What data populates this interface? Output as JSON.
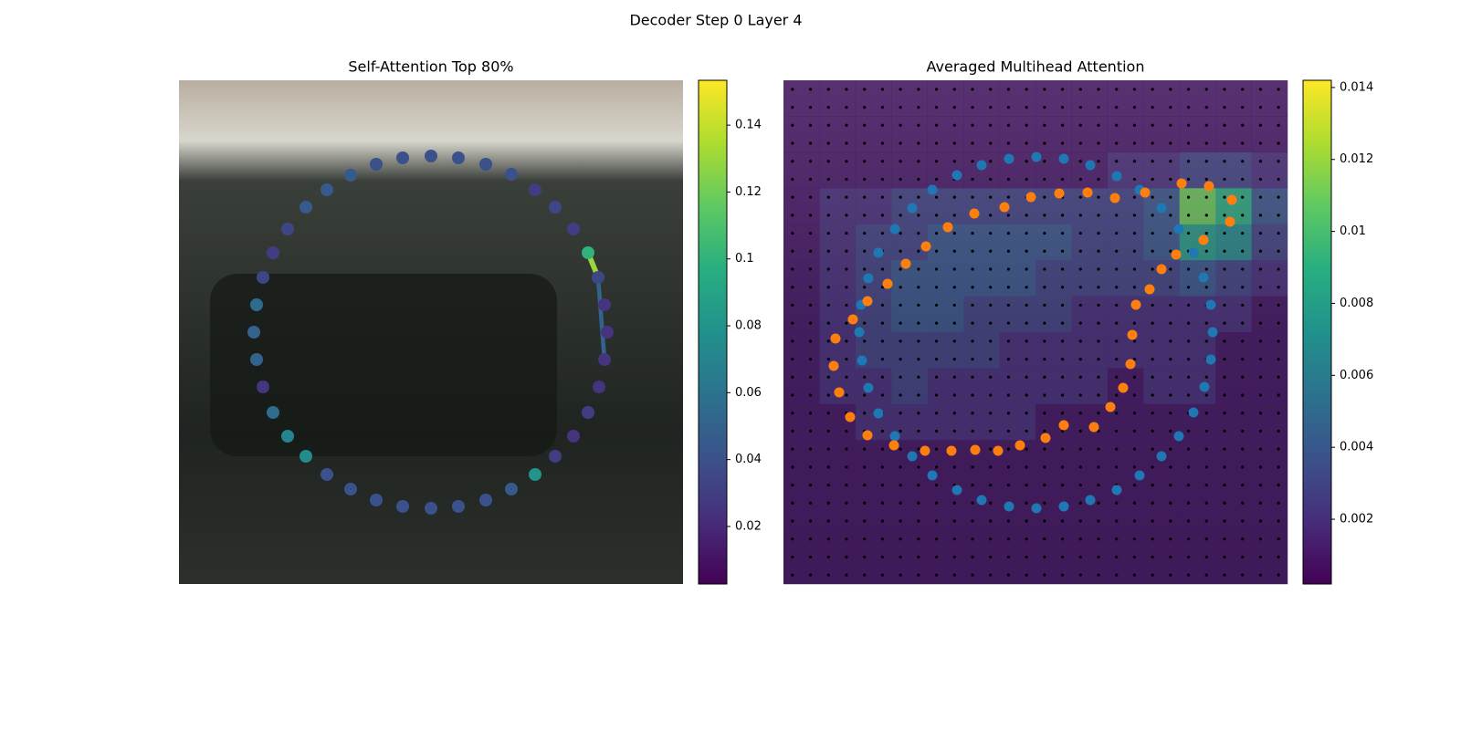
{
  "title": "Decoder Step 0 Layer 4",
  "chart_data": [
    {
      "type": "scatter",
      "title": "Self-Attention Top 80%",
      "colormap": "viridis",
      "xlim": [
        0,
        552
      ],
      "ylim": [
        552,
        0
      ],
      "x": [
        188,
        216,
        245,
        276,
        306,
        336,
        364,
        390,
        412,
        432,
        448,
        459,
        466,
        469,
        466,
        460,
        448,
        432,
        412,
        390,
        364,
        336,
        306,
        276,
        245,
        216,
        188,
        162,
        139,
        119,
        103,
        92,
        85,
        82,
        85,
        92,
        103,
        119,
        139,
        162
      ],
      "y": [
        104,
        92,
        85,
        83,
        85,
        92,
        103,
        120,
        139,
        163,
        189,
        216,
        246,
        276,
        306,
        336,
        364,
        390,
        412,
        432,
        448,
        460,
        467,
        469,
        467,
        460,
        448,
        432,
        412,
        390,
        364,
        336,
        306,
        276,
        246,
        216,
        189,
        163,
        139,
        120
      ],
      "values": [
        0.045,
        0.04,
        0.04,
        0.04,
        0.04,
        0.04,
        0.04,
        0.03,
        0.035,
        0.03,
        0.1,
        0.035,
        0.025,
        0.025,
        0.025,
        0.025,
        0.03,
        0.025,
        0.03,
        0.08,
        0.045,
        0.04,
        0.04,
        0.04,
        0.04,
        0.04,
        0.04,
        0.04,
        0.075,
        0.07,
        0.055,
        0.025,
        0.05,
        0.05,
        0.055,
        0.035,
        0.03,
        0.035,
        0.045,
        0.045
      ],
      "edges": [
        {
          "from": 11,
          "to": 14,
          "value": 0.05
        },
        {
          "from": 10,
          "to": 11,
          "value": 0.13
        }
      ],
      "colorbar": {
        "lim": [
          0.0028,
          0.1534
        ],
        "ticks": [
          0.02,
          0.04,
          0.06,
          0.08,
          0.1,
          0.12,
          0.14
        ]
      }
    },
    {
      "type": "heatmap",
      "title": "Averaged Multihead Attention",
      "colormap": "viridis",
      "xlim": [
        0,
        552
      ],
      "ylim": [
        552,
        0
      ],
      "grid_dots": true,
      "matrix": [
        [
          0.001,
          0.001,
          0.001,
          0.001,
          0.001,
          0.001,
          0.001,
          0.001,
          0.001,
          0.001,
          0.001,
          0.001,
          0.001,
          0.001
        ],
        [
          0.001,
          0.001,
          0.001,
          0.001,
          0.001,
          0.001,
          0.001,
          0.001,
          0.001,
          0.001,
          0.001,
          0.001,
          0.001,
          0.001
        ],
        [
          0.001,
          0.001,
          0.001,
          0.001,
          0.001,
          0.001,
          0.001,
          0.001,
          0.001,
          0.002,
          0.002,
          0.003,
          0.003,
          0.002
        ],
        [
          0.001,
          0.002,
          0.002,
          0.003,
          0.003,
          0.003,
          0.003,
          0.003,
          0.003,
          0.003,
          0.004,
          0.011,
          0.009,
          0.004
        ],
        [
          0.001,
          0.002,
          0.003,
          0.003,
          0.004,
          0.004,
          0.004,
          0.004,
          0.003,
          0.003,
          0.004,
          0.008,
          0.007,
          0.003
        ],
        [
          0.001,
          0.002,
          0.003,
          0.004,
          0.004,
          0.004,
          0.004,
          0.003,
          0.003,
          0.003,
          0.003,
          0.004,
          0.003,
          0.002
        ],
        [
          0.001,
          0.002,
          0.003,
          0.004,
          0.004,
          0.003,
          0.003,
          0.003,
          0.002,
          0.002,
          0.002,
          0.002,
          0.002,
          0.001
        ],
        [
          0.001,
          0.002,
          0.003,
          0.003,
          0.003,
          0.003,
          0.002,
          0.002,
          0.002,
          0.002,
          0.002,
          0.002,
          0.001,
          0.001
        ],
        [
          0.001,
          0.002,
          0.002,
          0.003,
          0.002,
          0.002,
          0.002,
          0.002,
          0.002,
          0.001,
          0.002,
          0.002,
          0.001,
          0.001
        ],
        [
          0.001,
          0.001,
          0.002,
          0.002,
          0.002,
          0.002,
          0.002,
          0.001,
          0.001,
          0.001,
          0.001,
          0.001,
          0.001,
          0.001
        ],
        [
          0.001,
          0.001,
          0.001,
          0.001,
          0.001,
          0.001,
          0.001,
          0.001,
          0.001,
          0.001,
          0.001,
          0.001,
          0.001,
          0.001
        ],
        [
          0.001,
          0.001,
          0.001,
          0.001,
          0.001,
          0.001,
          0.001,
          0.001,
          0.001,
          0.001,
          0.001,
          0.001,
          0.001,
          0.001
        ],
        [
          0.001,
          0.001,
          0.001,
          0.001,
          0.001,
          0.001,
          0.001,
          0.001,
          0.001,
          0.001,
          0.001,
          0.001,
          0.001,
          0.001
        ],
        [
          0.001,
          0.001,
          0.001,
          0.001,
          0.001,
          0.001,
          0.001,
          0.001,
          0.001,
          0.001,
          0.001,
          0.001,
          0.001,
          0.001
        ]
      ],
      "series": [
        {
          "color": "#1f77b4",
          "x": [
            217,
            247,
            277,
            307,
            336,
            365,
            390,
            414,
            433,
            449,
            460,
            468,
            470,
            468,
            461,
            449,
            433,
            414,
            390,
            365,
            336,
            307,
            277,
            247,
            217,
            190,
            163,
            141,
            122,
            104,
            93,
            86,
            83,
            85,
            93,
            104,
            122,
            141,
            163,
            190
          ],
          "y": [
            93,
            86,
            84,
            86,
            93,
            105,
            120,
            140,
            163,
            189,
            216,
            246,
            276,
            306,
            336,
            364,
            390,
            412,
            433,
            449,
            460,
            467,
            469,
            467,
            460,
            449,
            433,
            412,
            390,
            365,
            337,
            307,
            276,
            246,
            217,
            189,
            163,
            140,
            120,
            104
          ]
        },
        {
          "color": "#ff7f0e",
          "x": [
            436,
            466,
            491,
            489,
            460,
            430,
            414,
            401,
            386,
            382,
            380,
            372,
            358,
            340,
            307,
            287,
            259,
            235,
            210,
            184,
            155,
            121,
            92,
            73,
            61,
            55,
            57,
            76,
            92,
            114,
            134,
            156,
            180,
            209,
            242,
            271,
            302,
            333,
            363,
            396
          ],
          "y": [
            113,
            116,
            131,
            155,
            175,
            191,
            207,
            229,
            246,
            279,
            311,
            337,
            358,
            380,
            378,
            392,
            400,
            406,
            405,
            406,
            406,
            400,
            389,
            369,
            342,
            313,
            283,
            262,
            242,
            223,
            201,
            182,
            161,
            146,
            139,
            128,
            124,
            123,
            129,
            123
          ]
        }
      ],
      "colorbar": {
        "lim": [
          0.0002,
          0.0142
        ],
        "ticks": [
          0.002,
          0.004,
          0.006,
          0.008,
          0.01,
          0.012,
          0.014
        ]
      }
    }
  ]
}
